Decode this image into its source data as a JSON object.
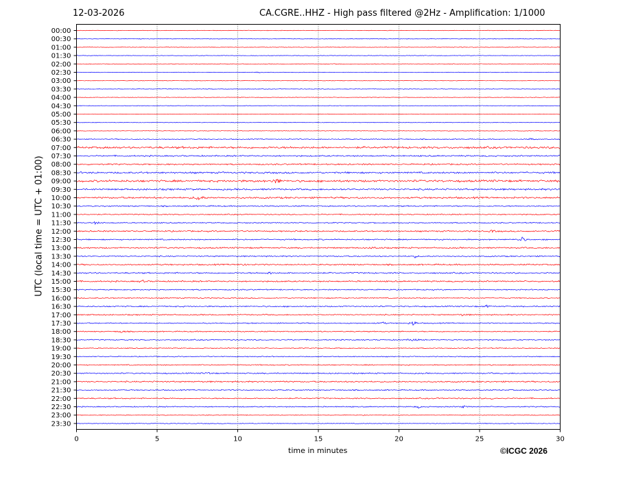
{
  "header": {
    "date": "12-03-2026",
    "title": "CA.CGRE..HHZ - High pass filtered @2Hz - Amplification: 1/1000"
  },
  "footer": {
    "copyright": "©ICGC 2026"
  },
  "chart_data": {
    "type": "line",
    "xlabel": "time in minutes",
    "ylabel": "UTC (local time = UTC + 01:00)",
    "xlim": [
      0,
      30
    ],
    "x_ticks": [
      0,
      5,
      10,
      15,
      20,
      25,
      30
    ],
    "grid": "vertical dotted at 5-minute intervals",
    "row_colors": [
      "#ff0000",
      "#0000ff"
    ],
    "rows": [
      "00:00",
      "00:30",
      "01:00",
      "01:30",
      "02:00",
      "02:30",
      "03:00",
      "03:30",
      "04:00",
      "04:30",
      "05:00",
      "05:30",
      "06:00",
      "06:30",
      "07:00",
      "07:30",
      "08:00",
      "08:30",
      "09:00",
      "09:30",
      "10:00",
      "10:30",
      "11:00",
      "11:30",
      "12:00",
      "12:30",
      "13:00",
      "13:30",
      "14:00",
      "14:30",
      "15:00",
      "15:30",
      "16:00",
      "16:30",
      "17:00",
      "17:30",
      "18:00",
      "18:30",
      "19:00",
      "19:30",
      "20:00",
      "20:30",
      "21:00",
      "21:30",
      "22:00",
      "22:30",
      "23:00",
      "23:30"
    ],
    "noise_level": [
      0.3,
      0.3,
      0.3,
      0.3,
      0.3,
      0.3,
      0.3,
      0.3,
      0.3,
      0.3,
      0.3,
      0.3,
      0.3,
      0.5,
      1.2,
      0.8,
      0.8,
      1.0,
      1.2,
      1.0,
      1.0,
      0.7,
      0.6,
      0.6,
      0.8,
      0.7,
      0.8,
      0.7,
      0.8,
      0.8,
      0.8,
      0.6,
      0.6,
      0.7,
      0.7,
      0.6,
      0.6,
      0.6,
      0.5,
      0.5,
      0.6,
      0.7,
      0.8,
      0.6,
      0.7,
      0.6,
      0.4,
      0.4
    ],
    "events": [
      {
        "row": "02:30",
        "minute": 11.3,
        "amplitude": 1.5
      },
      {
        "row": "06:30",
        "minute": 28.2,
        "amplitude": 1.5
      },
      {
        "row": "09:00",
        "minute": 12.4,
        "amplitude": 4.5
      },
      {
        "row": "10:00",
        "minute": 7.6,
        "amplitude": 5.0
      },
      {
        "row": "11:30",
        "minute": 1.2,
        "amplitude": 2.0
      },
      {
        "row": "12:00",
        "minute": 25.8,
        "amplitude": 1.5
      },
      {
        "row": "12:00",
        "minute": 29.8,
        "amplitude": 2.0
      },
      {
        "row": "12:30",
        "minute": 27.6,
        "amplitude": 4.5
      },
      {
        "row": "13:00",
        "minute": 18.5,
        "amplitude": 1.5
      },
      {
        "row": "13:30",
        "minute": 21.0,
        "amplitude": 1.5
      },
      {
        "row": "14:00",
        "minute": 10.3,
        "amplitude": 1.5
      },
      {
        "row": "14:30",
        "minute": 12.0,
        "amplitude": 1.5
      },
      {
        "row": "15:00",
        "minute": 4.1,
        "amplitude": 1.5
      },
      {
        "row": "16:30",
        "minute": 25.5,
        "amplitude": 1.5
      },
      {
        "row": "17:00",
        "minute": 24.0,
        "amplitude": 1.5
      },
      {
        "row": "17:30",
        "minute": 20.9,
        "amplitude": 4.0
      },
      {
        "row": "17:30",
        "minute": 19.0,
        "amplitude": 1.5
      },
      {
        "row": "18:00",
        "minute": 2.8,
        "amplitude": 2.0
      },
      {
        "row": "18:30",
        "minute": 20.9,
        "amplitude": 2.5
      },
      {
        "row": "20:30",
        "minute": 8.2,
        "amplitude": 1.5
      },
      {
        "row": "21:00",
        "minute": 12.8,
        "amplitude": 1.5
      },
      {
        "row": "22:00",
        "minute": 25.8,
        "amplitude": 1.5
      },
      {
        "row": "22:30",
        "minute": 21.2,
        "amplitude": 1.5
      },
      {
        "row": "22:30",
        "minute": 24.0,
        "amplitude": 1.5
      }
    ]
  }
}
